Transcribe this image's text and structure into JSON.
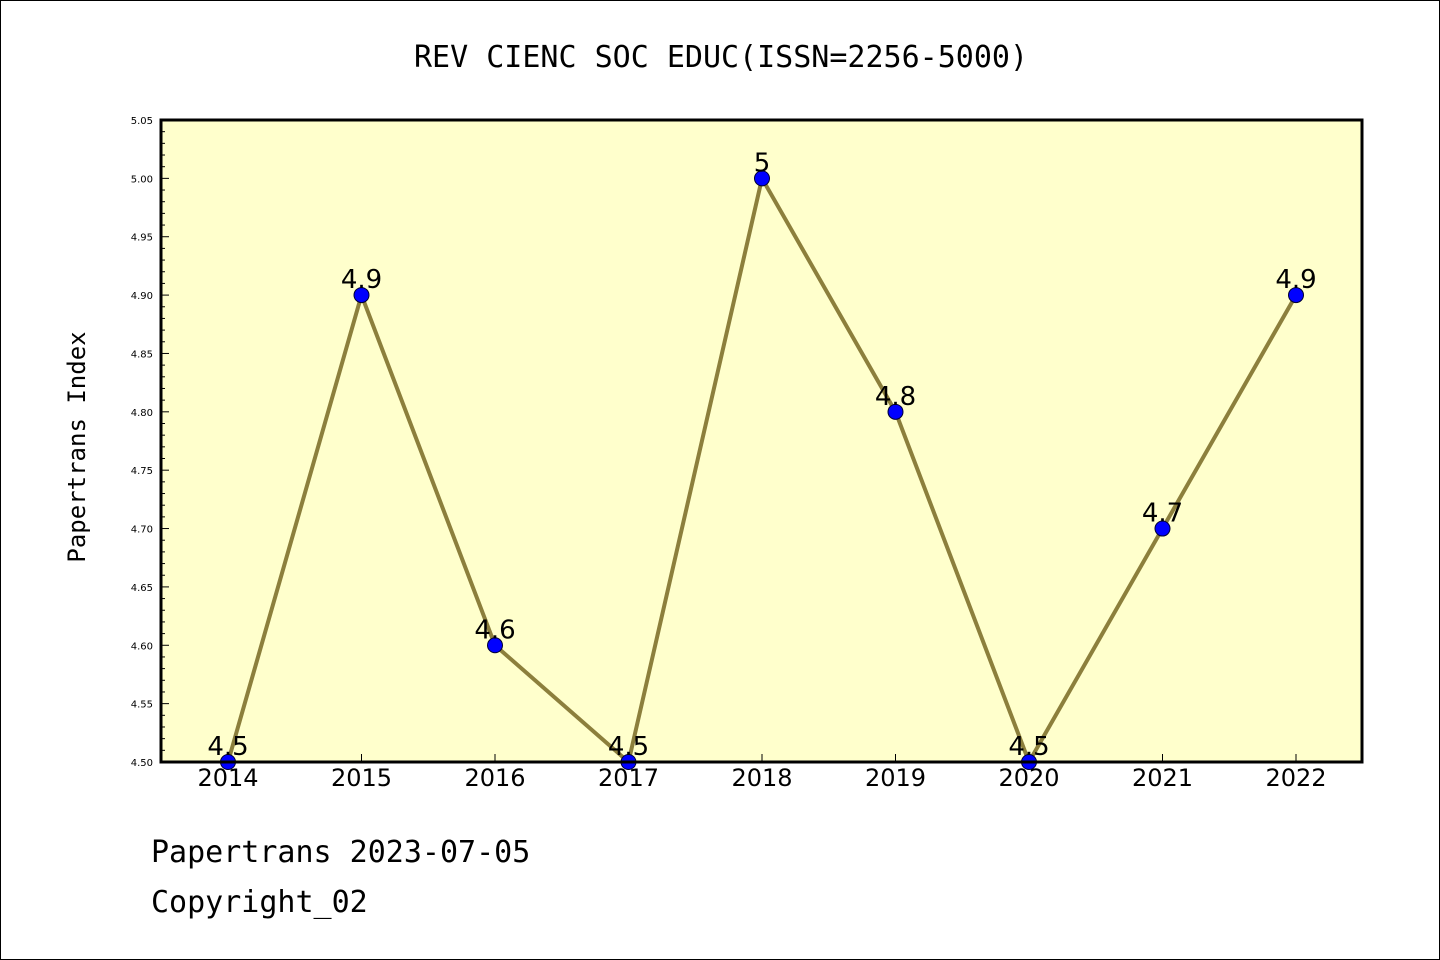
{
  "colors": {
    "plot_background": "#ffffcc",
    "line": "#8c7f3c",
    "marker_fill": "#0000ff",
    "marker_stroke": "#000033",
    "axis": "#000000"
  },
  "chart_data": {
    "type": "line",
    "title": "REV CIENC SOC EDUC(ISSN=2256-5000)",
    "xlabel": "",
    "ylabel": "Papertrans Index",
    "categories": [
      "2014",
      "2015",
      "2016",
      "2017",
      "2018",
      "2019",
      "2020",
      "2021",
      "2022"
    ],
    "series": [
      {
        "values": [
          4.5,
          4.9,
          4.6,
          4.5,
          5.0,
          4.8,
          4.5,
          4.7,
          4.9
        ],
        "data_labels": [
          "4.5",
          "4.9",
          "4.6",
          "4.5",
          "5",
          "4.8",
          "4.5",
          "4.7",
          "4.9"
        ]
      }
    ],
    "ylim": [
      4.5,
      5.05
    ],
    "yticks": [
      "4.50",
      "4.55",
      "4.60",
      "4.65",
      "4.70",
      "4.75",
      "4.80",
      "4.85",
      "4.90",
      "4.95",
      "5.00",
      "5.05"
    ],
    "grid": false,
    "legend": "none"
  },
  "footer": {
    "date_line": "Papertrans 2023-07-05",
    "copyright": "Copyright_02"
  }
}
